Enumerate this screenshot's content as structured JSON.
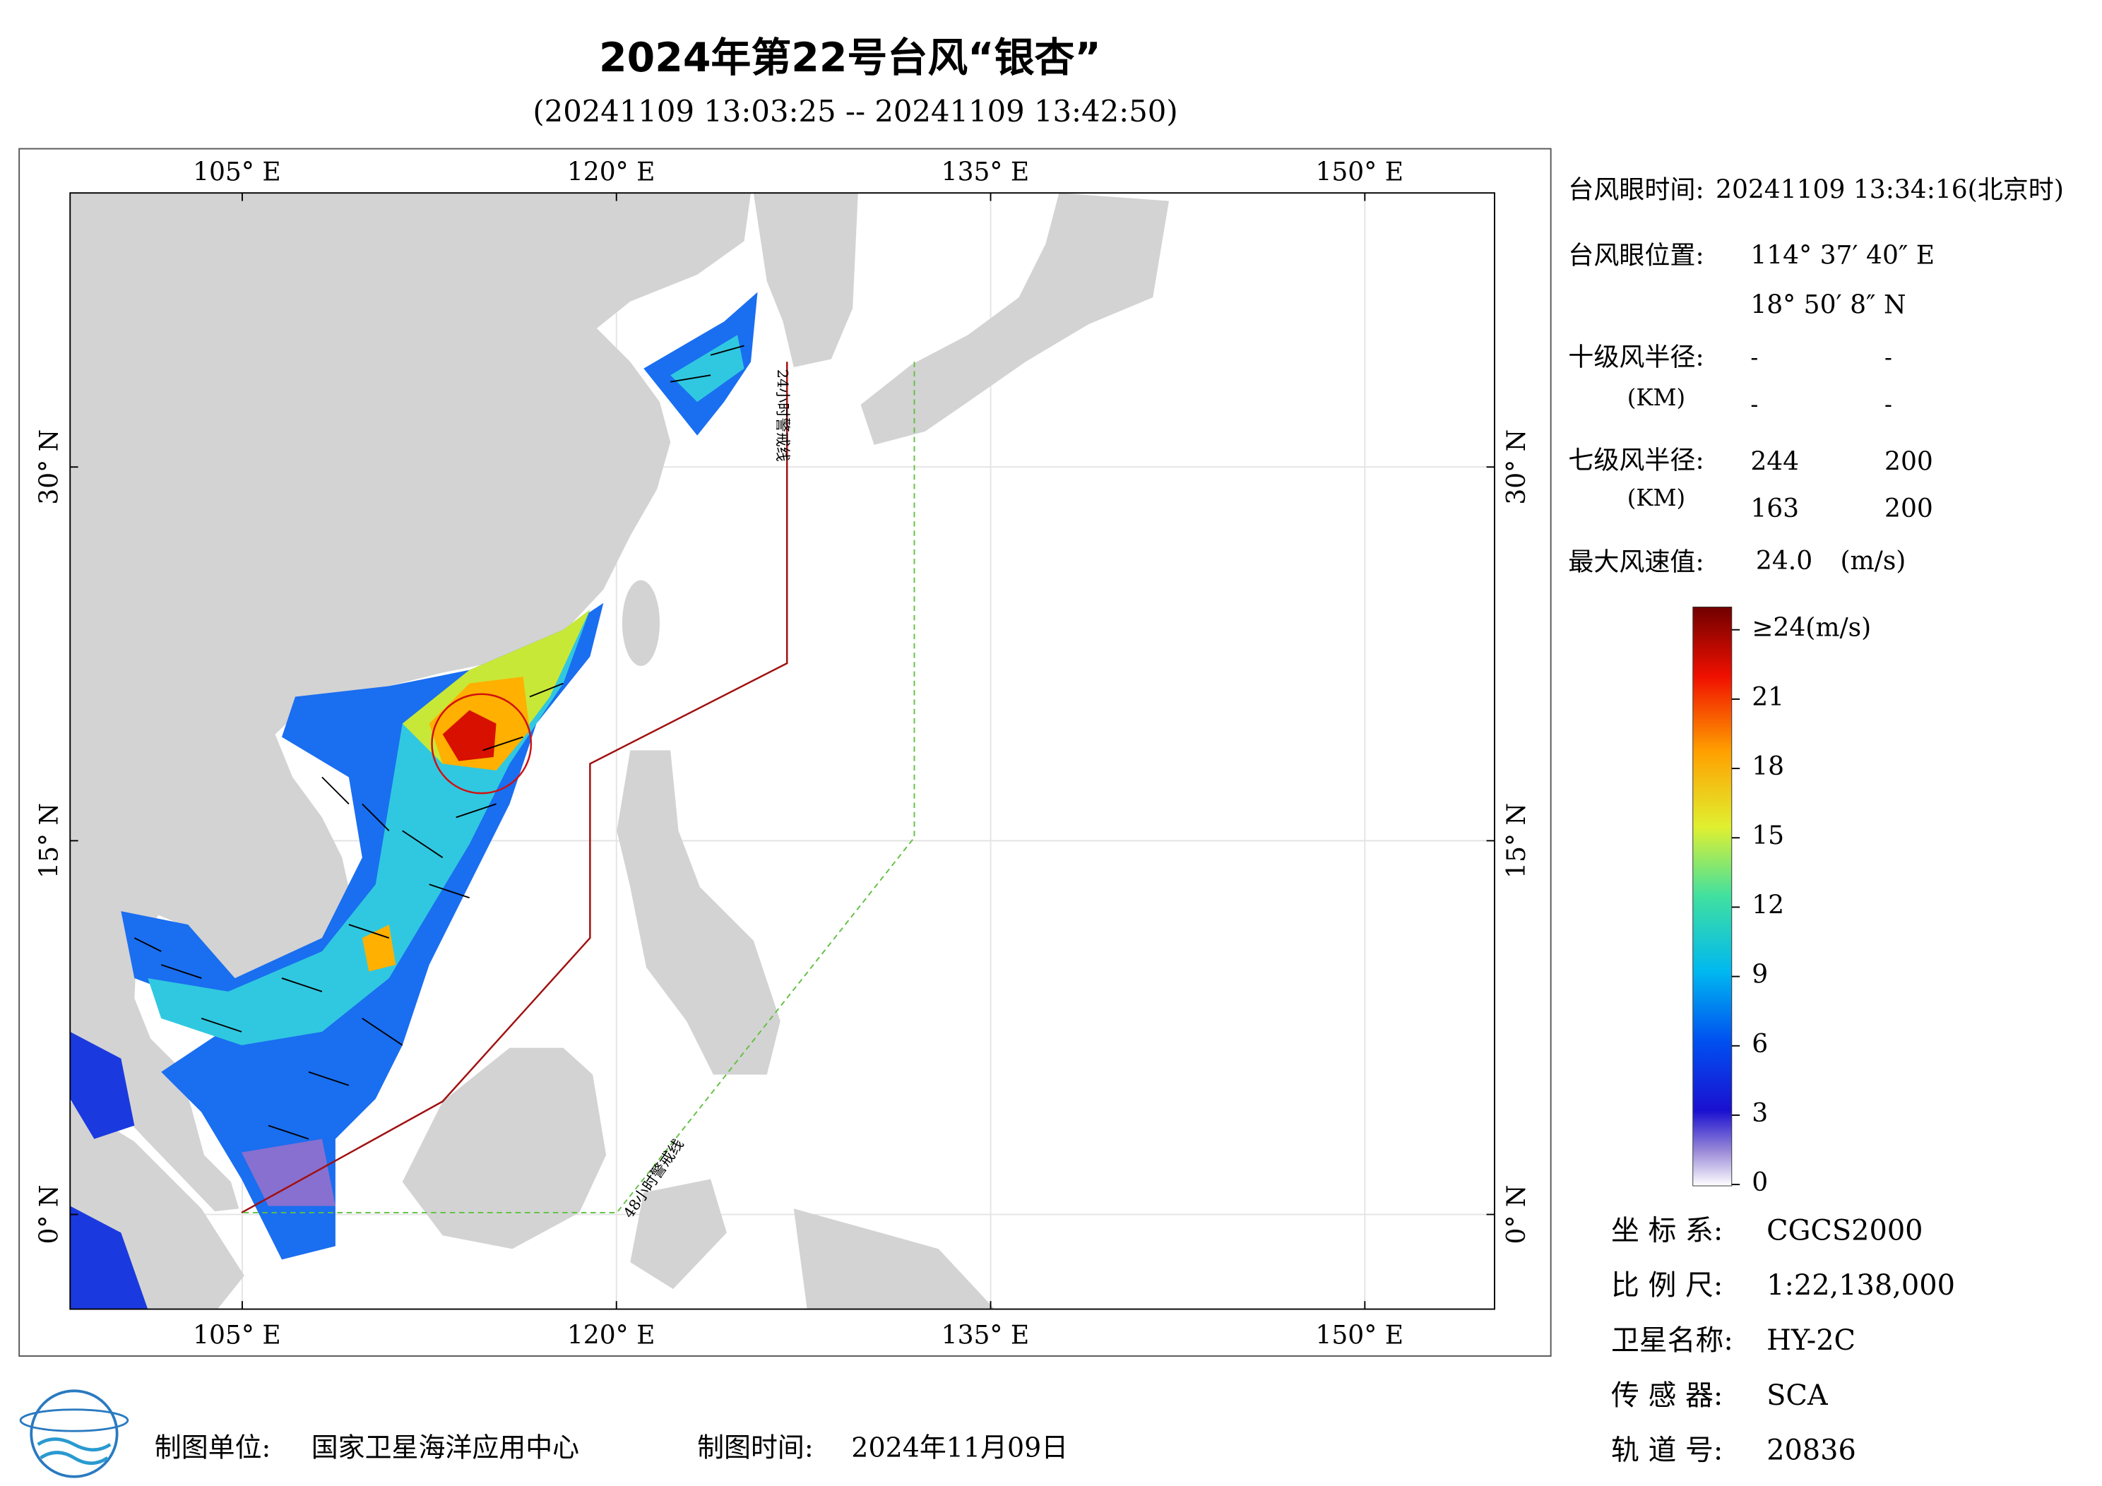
{
  "title": "2024年第22号台风“银杏”",
  "subtitle": "(20241109 13:03:25 -- 20241109 13:42:50)",
  "map": {
    "xlim": [
      98.1,
      155.2
    ],
    "ylim": [
      -3.8,
      41.0
    ],
    "xticks": [
      {
        "value": 105,
        "label": "105° E"
      },
      {
        "value": 120,
        "label": "120° E"
      },
      {
        "value": 135,
        "label": "135° E"
      },
      {
        "value": 150,
        "label": "150° E"
      }
    ],
    "yticks": [
      {
        "value": 0,
        "label": "0° N"
      },
      {
        "value": 15,
        "label": "15° N"
      },
      {
        "value": 30,
        "label": "30° N"
      }
    ],
    "warning_24h": "24小时警戒线",
    "warning_48h": "48小时警戒线"
  },
  "info": {
    "eye_time": {
      "label": "台风眼时间:",
      "value": "20241109 13:34:16(北京时)"
    },
    "eye_position": {
      "label": "台风眼位置:",
      "lon": "114° 37′ 40″ E",
      "lat": "18° 50′ 8″ N"
    },
    "r10": {
      "label": "十级风半径:",
      "unit": "(KM)",
      "values": [
        "-",
        "-",
        "-",
        "-"
      ]
    },
    "r7": {
      "label": "七级风半径:",
      "unit": "(KM)",
      "values": [
        244,
        200,
        163,
        200
      ]
    },
    "max_wind": {
      "label": "最大风速值:",
      "value": "24.0",
      "unit": "(m/s)"
    }
  },
  "colorbar": {
    "range": [
      0,
      24
    ],
    "ticks": [
      {
        "value": 24,
        "label": "≥24(m/s)"
      },
      21,
      18,
      15,
      12,
      9,
      6,
      3,
      0
    ]
  },
  "meta": [
    {
      "label": "坐 标 系:",
      "value": "CGCS2000"
    },
    {
      "label": "比 例 尺:",
      "value": "1:22,138,000"
    },
    {
      "label": "卫星名称:",
      "value": "HY-2C"
    },
    {
      "label": "传 感 器:",
      "value": "SCA"
    },
    {
      "label": "轨 道 号:",
      "value": "20836"
    }
  ],
  "footer": {
    "unit_label": "制图单位:",
    "unit": "国家卫星海洋应用中心",
    "time_label": "制图时间:",
    "time": "2024年11月09日"
  }
}
